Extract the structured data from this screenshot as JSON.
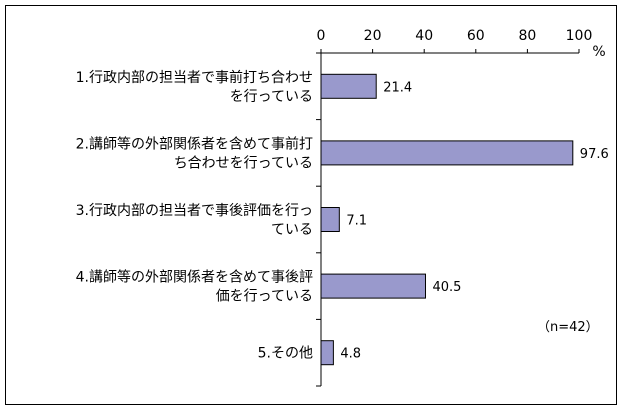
{
  "chart_data": {
    "type": "bar",
    "orientation": "horizontal",
    "categories": [
      [
        "1.行政内部の担当者で事前打ち合わせ",
        "を行っている"
      ],
      [
        "2.講師等の外部関係者を含めて事前打",
        "ち合わせを行っている"
      ],
      [
        "3.行政内部の担当者で事後評価を行っ",
        "ている"
      ],
      [
        "4.講師等の外部関係者を含めて事後評",
        "価を行っている"
      ],
      [
        "5.その他"
      ]
    ],
    "values": [
      21.4,
      97.6,
      7.1,
      40.5,
      4.8
    ],
    "value_labels": [
      "21.4",
      "97.6",
      "7.1",
      "40.5",
      "4.8"
    ],
    "xlim": [
      0,
      100
    ],
    "x_ticks": [
      "0",
      "20",
      "40",
      "60",
      "80",
      "100"
    ],
    "x_unit": "%",
    "note": "（n=42）",
    "bar_color": "#9999cc",
    "grid": false
  }
}
